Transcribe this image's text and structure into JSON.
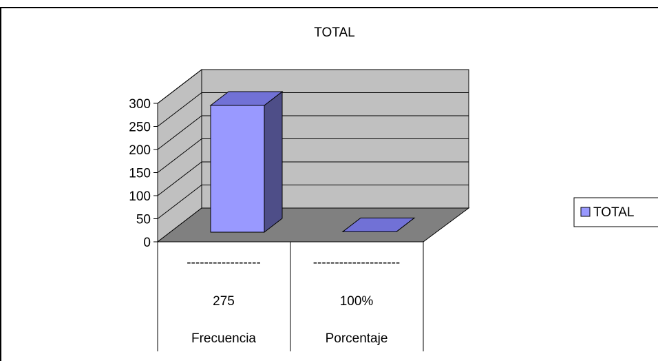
{
  "chart_data": {
    "type": "bar",
    "title": "TOTAL",
    "categories": [
      [
        "-----------------",
        "275",
        "Frecuencia"
      ],
      [
        "--------------------",
        "100%",
        "Porcentaje"
      ]
    ],
    "series": [
      {
        "name": "TOTAL",
        "values": [
          275,
          1
        ]
      }
    ],
    "ylim": [
      0,
      300
    ],
    "yticks": [
      "0",
      "50",
      "100",
      "150",
      "200",
      "250",
      "300"
    ],
    "grid": true,
    "legend": "right",
    "colors": {
      "bar_front": "#9999ff",
      "bar_top": "#7171d6",
      "bar_side": "#4e4e88",
      "back_wall": "#c0c0c0",
      "side_wall": "#c0c0c0",
      "floor": "#808080",
      "gridline": "#000000"
    }
  }
}
